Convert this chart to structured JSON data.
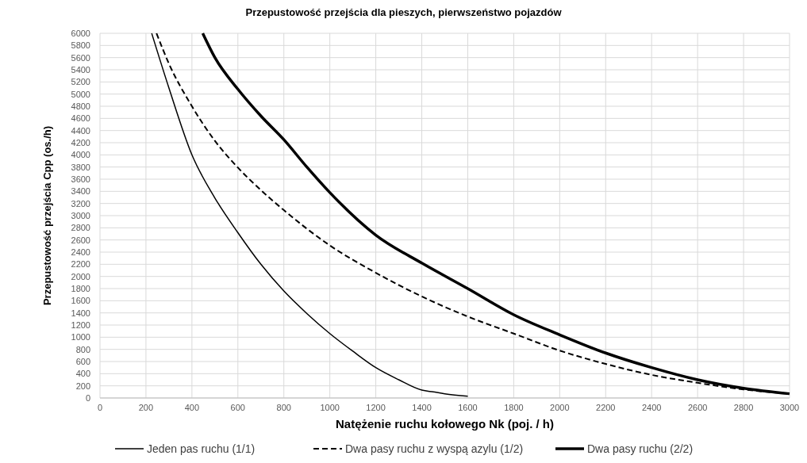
{
  "chart_data": {
    "type": "line",
    "title": "Przepustowość przejścia dla pieszych, pierwszeństwo pojazdów",
    "xlabel": "Natężenie ruchu kołowego Nk (poj. / h)",
    "ylabel": "Przepustowość przejścia Cpp (os./h)",
    "xlim": [
      0,
      3000
    ],
    "xticks": [
      0,
      200,
      400,
      600,
      800,
      1000,
      1200,
      1400,
      1600,
      1800,
      2000,
      2200,
      2400,
      2600,
      2800,
      3000
    ],
    "ylim": [
      0,
      6000
    ],
    "yticks": [
      0,
      200,
      400,
      600,
      800,
      1000,
      1200,
      1400,
      1600,
      1800,
      2000,
      2200,
      2400,
      2600,
      2800,
      3000,
      3200,
      3400,
      3600,
      3800,
      4000,
      4200,
      4400,
      4600,
      4800,
      5000,
      5200,
      5400,
      5600,
      5800,
      6000
    ],
    "grid": true,
    "legend": "bottom",
    "series": [
      {
        "name": "Jeden pas ruchu (1/1)",
        "color": "#000000",
        "line_style": "solid",
        "x": [
          225,
          300,
          400,
          500,
          600,
          700,
          800,
          900,
          1000,
          1100,
          1200,
          1300,
          1400,
          1450,
          1500,
          1600
        ],
        "values": [
          6000,
          5100,
          4000,
          3290,
          2720,
          2200,
          1760,
          1390,
          1060,
          770,
          500,
          300,
          130,
          100,
          70,
          30
        ]
      },
      {
        "name": "Dwa pasy ruchu z wyspą azylu (1/2)",
        "color": "#000000",
        "line_style": "dashed",
        "x": [
          246,
          300,
          400,
          500,
          600,
          700,
          800,
          1000,
          1200,
          1400,
          1600,
          1800,
          2000,
          2200,
          2400,
          2600,
          2800,
          3000
        ],
        "values": [
          6000,
          5500,
          4800,
          4230,
          3790,
          3420,
          3090,
          2510,
          2060,
          1670,
          1340,
          1060,
          780,
          560,
          380,
          250,
          140,
          70
        ]
      },
      {
        "name": "Dwa pasy ruchu (2/2)",
        "color": "#000000",
        "line_style": "solid",
        "x": [
          447,
          500,
          600,
          700,
          800,
          900,
          1000,
          1200,
          1400,
          1600,
          1800,
          2000,
          2200,
          2400,
          2600,
          2800,
          3000
        ],
        "values": [
          6000,
          5600,
          5080,
          4640,
          4250,
          3800,
          3380,
          2680,
          2220,
          1800,
          1370,
          1040,
          740,
          500,
          300,
          160,
          70
        ]
      }
    ]
  }
}
